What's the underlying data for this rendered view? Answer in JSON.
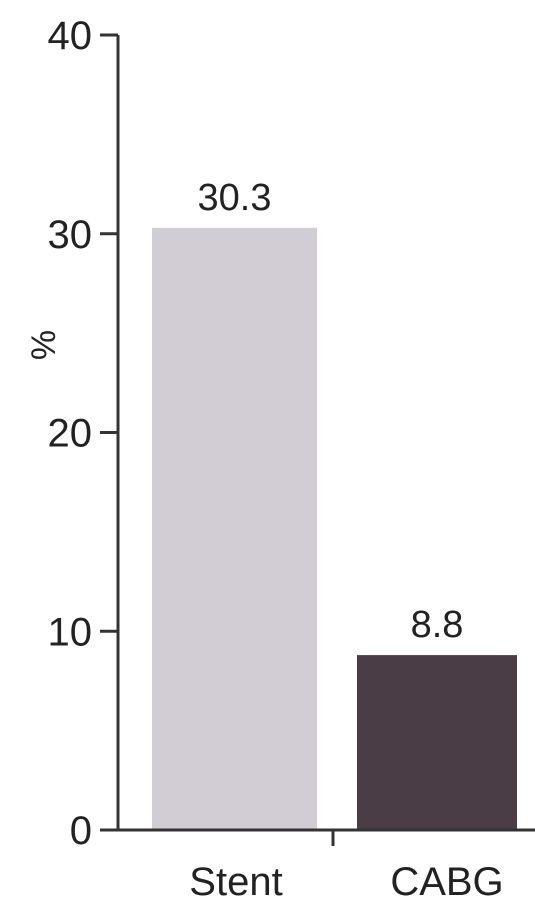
{
  "chart_data": {
    "type": "bar",
    "categories": [
      "Stent",
      "CABG"
    ],
    "values": [
      30.3,
      8.8
    ],
    "data_labels": [
      "30.3",
      "8.8"
    ],
    "title": "",
    "xlabel": "",
    "ylabel": "%",
    "ylim": [
      0,
      40
    ],
    "yticks": [
      0,
      10,
      20,
      30,
      40
    ],
    "ytick_labels": [
      "0",
      "10",
      "20",
      "30",
      "40"
    ],
    "grid": false,
    "legend": "none",
    "bar_colors": [
      "#d2cdd4",
      "#4a3d45"
    ]
  }
}
